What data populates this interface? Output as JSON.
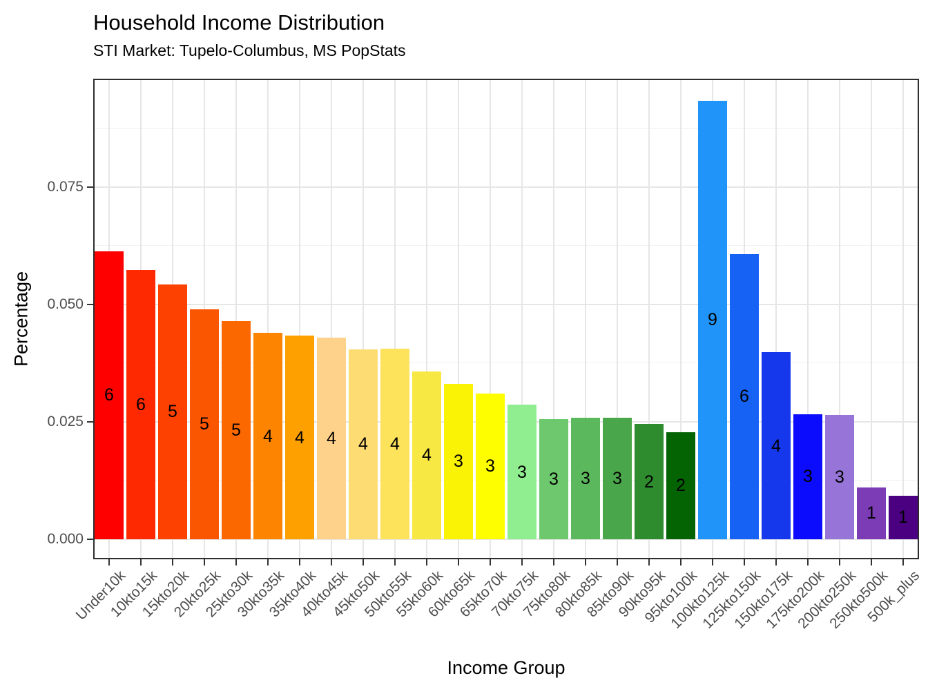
{
  "chart_data": {
    "type": "bar",
    "title": "Household Income Distribution",
    "subtitle": "STI Market: Tupelo-Columbus, MS PopStats",
    "xlabel": "Income Group",
    "ylabel": "Percentage",
    "categories": [
      "Under10k",
      "10kto15k",
      "15kto20k",
      "20kto25k",
      "25kto30k",
      "30kto35k",
      "35kto40k",
      "40kto45k",
      "45kto50k",
      "50kto55k",
      "55kto60k",
      "60kto65k",
      "65kto70k",
      "70kto75k",
      "75kto80k",
      "80kto85k",
      "85kto90k",
      "90kto95k",
      "95kto100k",
      "100kto125k",
      "125kto150k",
      "150kto175k",
      "175kto200k",
      "200kto250k",
      "250kto500k",
      "500k_plus"
    ],
    "values": [
      0.0613,
      0.0573,
      0.0543,
      0.049,
      0.0465,
      0.0439,
      0.0433,
      0.0429,
      0.0405,
      0.0406,
      0.0357,
      0.0331,
      0.031,
      0.0286,
      0.0255,
      0.0258,
      0.0259,
      0.0245,
      0.0228,
      0.0934,
      0.0607,
      0.0398,
      0.0266,
      0.0264,
      0.011,
      0.0093
    ],
    "bar_labels": [
      "6",
      "6",
      "5",
      "5",
      "5",
      "4",
      "4",
      "4",
      "4",
      "4",
      "4",
      "3",
      "3",
      "3",
      "3",
      "3",
      "3",
      "2",
      "2",
      "9",
      "6",
      "4",
      "3",
      "3",
      "1",
      "1"
    ],
    "bar_colors": [
      "#FE0000",
      "#FE2900",
      "#FD4100",
      "#FA5500",
      "#FB6800",
      "#FC8400",
      "#FEA000",
      "#FFD28B",
      "#FEDC74",
      "#FDE25C",
      "#F8E843",
      "#FBF306",
      "#FEFE00",
      "#90EE90",
      "#6EC86E",
      "#5CB85C",
      "#4AA64A",
      "#2E8B2E",
      "#046404",
      "#2094F8",
      "#1562F5",
      "#1638EC",
      "#0B0BFD",
      "#9674D8",
      "#7B3CB6",
      "#4B0082"
    ],
    "y_ticks": [
      0,
      0.025,
      0.05,
      0.075
    ],
    "y_tick_labels": [
      "0.000",
      "0.025",
      "0.050",
      "0.075"
    ],
    "y_minor_ticks": [
      0.0125,
      0.0375,
      0.0625,
      0.0875
    ],
    "ylim": [
      -0.0043,
      0.0981
    ],
    "bar_width_fraction": 0.9,
    "x_tick_angle": 45,
    "grid": "horizontal major+minor, vertical major at category centers",
    "legend_position": "none"
  },
  "style_colors": {
    "background": "#FFFFFF",
    "panel_background": "#FFFFFF",
    "panel_border": "#2D2D2D",
    "grid_major": "#E6E6E6",
    "grid_minor": "#F2F2F2",
    "axis_tick": "#333333",
    "tick_label_text": "#4D4D4D",
    "title_text": "#000000",
    "bar_label_text": "#000000"
  }
}
